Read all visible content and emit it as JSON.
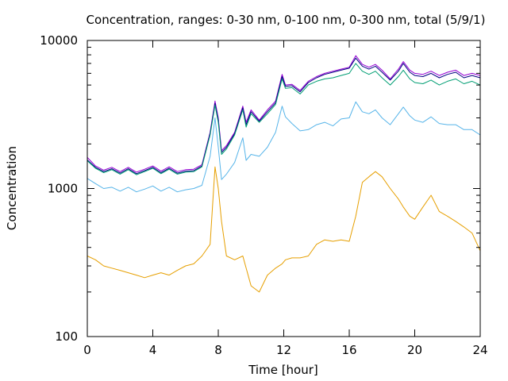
{
  "chart_data": {
    "type": "line",
    "title": "Concentration, ranges: 0-30 nm, 0-100 nm, 0-300 nm, total (5/9/1)",
    "xlabel": "Time [hour]",
    "ylabel": "Concentration",
    "xlim": [
      0,
      24
    ],
    "ylim": [
      100,
      10000
    ],
    "yscale": "log",
    "grid": false,
    "legend": "none",
    "xticks": [
      "0",
      "4",
      "8",
      "12",
      "16",
      "20",
      "24"
    ],
    "yticks": [
      "100",
      "1000",
      "10000"
    ],
    "x": [
      0,
      0.5,
      1,
      1.5,
      2,
      2.5,
      3,
      3.5,
      4,
      4.5,
      5,
      5.5,
      6,
      6.5,
      7,
      7.5,
      7.8,
      8,
      8.2,
      8.5,
      9,
      9.5,
      9.7,
      10,
      10.5,
      11,
      11.5,
      11.9,
      12.1,
      12.5,
      13,
      13.5,
      14,
      14.5,
      15,
      15.5,
      16,
      16.4,
      16.8,
      17.2,
      17.6,
      18,
      18.5,
      19,
      19.3,
      19.7,
      20,
      20.5,
      21,
      21.5,
      22,
      22.5,
      23,
      23.5,
      24
    ],
    "series": [
      {
        "color": "#9400d3",
        "values": [
          1620,
          1420,
          1330,
          1390,
          1300,
          1390,
          1290,
          1350,
          1420,
          1310,
          1400,
          1300,
          1340,
          1350,
          1450,
          2400,
          3900,
          3000,
          1800,
          1950,
          2400,
          3600,
          2800,
          3400,
          2900,
          3400,
          3900,
          5900,
          5000,
          5050,
          4600,
          5300,
          5700,
          6000,
          6200,
          6400,
          6600,
          7900,
          6900,
          6600,
          6900,
          6300,
          5500,
          6400,
          7200,
          6300,
          6000,
          5900,
          6200,
          5800,
          6100,
          6300,
          5800,
          6000,
          5800
        ]
      },
      {
        "color": "#000080",
        "values": [
          1560,
          1390,
          1300,
          1360,
          1270,
          1360,
          1260,
          1320,
          1390,
          1280,
          1370,
          1270,
          1310,
          1320,
          1420,
          2350,
          3750,
          2900,
          1750,
          1900,
          2350,
          3500,
          2700,
          3300,
          2850,
          3300,
          3800,
          5700,
          4900,
          4950,
          4500,
          5200,
          5600,
          5900,
          6100,
          6300,
          6500,
          7600,
          6700,
          6400,
          6700,
          6100,
          5400,
          6200,
          7000,
          6100,
          5800,
          5700,
          6000,
          5600,
          5900,
          6100,
          5600,
          5800,
          5600
        ]
      },
      {
        "color": "#009e73",
        "values": [
          1540,
          1370,
          1280,
          1340,
          1250,
          1340,
          1240,
          1300,
          1370,
          1260,
          1350,
          1250,
          1290,
          1300,
          1400,
          2300,
          3650,
          2800,
          1700,
          1850,
          2300,
          3400,
          2600,
          3200,
          2800,
          3200,
          3700,
          5500,
          4750,
          4800,
          4350,
          5000,
          5300,
          5500,
          5600,
          5800,
          6000,
          7000,
          6200,
          5900,
          6200,
          5600,
          5000,
          5700,
          6300,
          5500,
          5200,
          5100,
          5400,
          5000,
          5300,
          5500,
          5100,
          5300,
          5000
        ]
      },
      {
        "color": "#56b4e9",
        "values": [
          1170,
          1080,
          1000,
          1020,
          960,
          1020,
          950,
          990,
          1040,
          960,
          1020,
          950,
          980,
          1000,
          1050,
          1650,
          3000,
          1900,
          1150,
          1250,
          1500,
          2200,
          1550,
          1700,
          1650,
          1900,
          2400,
          3600,
          3050,
          2750,
          2450,
          2500,
          2700,
          2800,
          2650,
          2950,
          3000,
          3850,
          3300,
          3200,
          3400,
          3000,
          2700,
          3200,
          3550,
          3100,
          2900,
          2800,
          3050,
          2750,
          2700,
          2700,
          2500,
          2500,
          2300
        ]
      },
      {
        "color": "#e69f00",
        "values": [
          350,
          330,
          300,
          290,
          280,
          270,
          260,
          250,
          260,
          270,
          260,
          280,
          300,
          310,
          350,
          420,
          1400,
          1000,
          600,
          350,
          330,
          350,
          290,
          220,
          200,
          260,
          290,
          310,
          330,
          340,
          340,
          350,
          420,
          450,
          440,
          450,
          440,
          650,
          1100,
          1200,
          1300,
          1200,
          1000,
          850,
          750,
          650,
          620,
          750,
          900,
          700,
          650,
          600,
          550,
          500,
          380
        ]
      }
    ]
  }
}
